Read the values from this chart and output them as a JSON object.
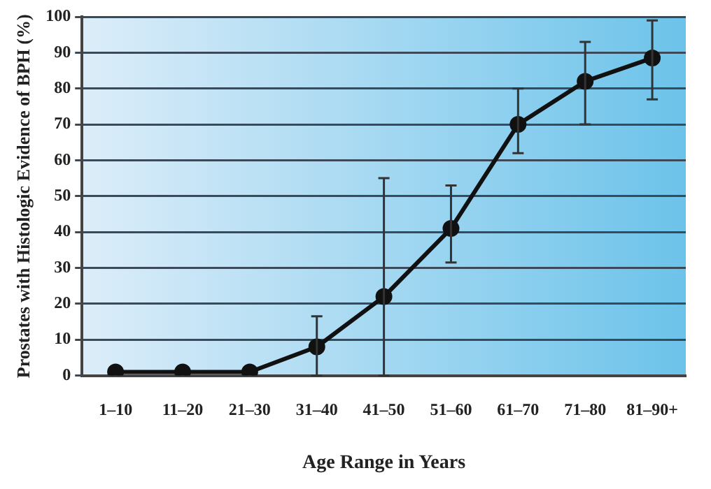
{
  "chart_data": {
    "type": "line",
    "xlabel": "Age Range in Years",
    "ylabel": "Prostates with Histologic Evidence of BPH (%)",
    "categories": [
      "1–10",
      "11–20",
      "21–30",
      "31–40",
      "41–50",
      "51–60",
      "61–70",
      "71–80",
      "81–90+"
    ],
    "series": [
      {
        "color": "#111111",
        "values": [
          1,
          1,
          1,
          8,
          22,
          41,
          70,
          82,
          88.5
        ],
        "errors": [
          null,
          null,
          null,
          [
            0,
            16.5
          ],
          [
            0,
            55
          ],
          [
            31.5,
            53
          ],
          [
            62,
            80
          ],
          [
            70,
            93
          ],
          [
            77,
            99
          ]
        ]
      }
    ],
    "ylim": [
      0,
      100
    ],
    "yticks": [
      0,
      10,
      20,
      30,
      40,
      50,
      60,
      70,
      80,
      90,
      100
    ],
    "grid": "y",
    "legend": false,
    "marker": "circle",
    "line_style": "solid"
  }
}
